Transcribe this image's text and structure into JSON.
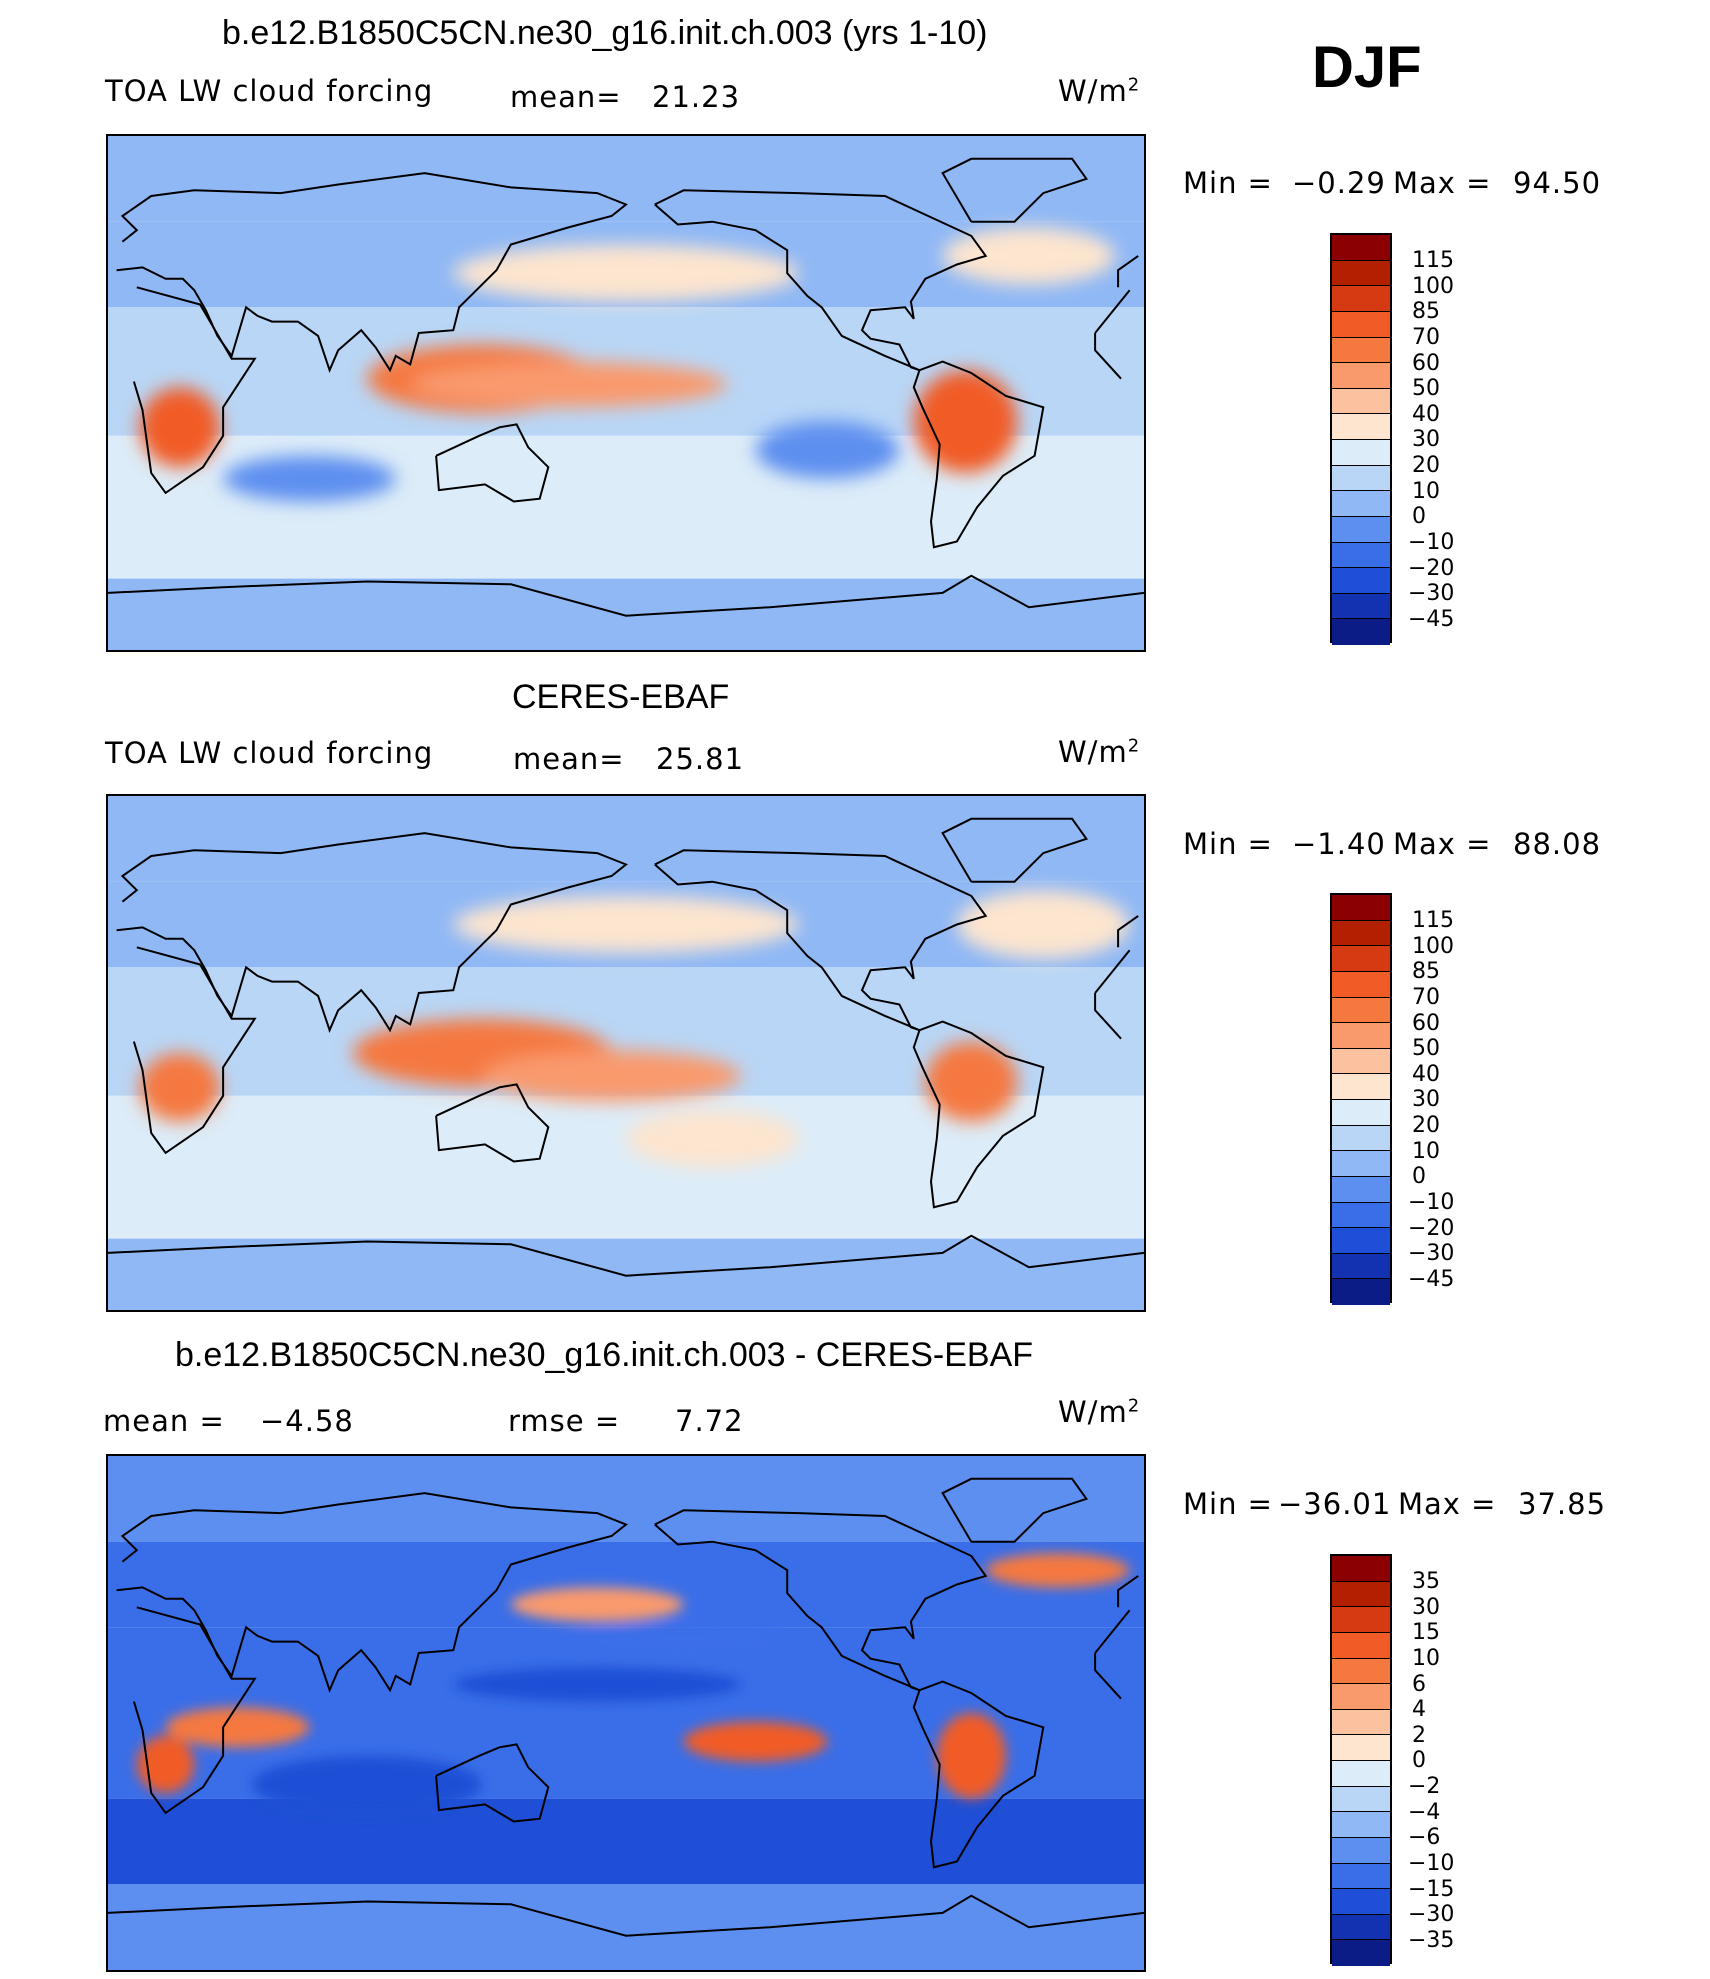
{
  "season": "DJF",
  "palette_main": [
    "#8b0000",
    "#b22000",
    "#d63a12",
    "#f15b26",
    "#f5783f",
    "#f99a6d",
    "#fbc2a0",
    "#fde5cf",
    "#dcecf8",
    "#b9d6f6",
    "#8fb8f5",
    "#5d8ff0",
    "#3a6ee8",
    "#1f4fd6",
    "#1232b2",
    "#0c1c87",
    "#06106a"
  ],
  "chart_data": [
    {
      "type": "heatmap",
      "title": "b.e12.B1850C5CN.ne30_g16.init.ch.003 (yrs 1-10)",
      "variable": "TOA LW cloud forcing",
      "mean_text": "mean=",
      "mean_value": "21.23",
      "units": "W/m",
      "units_sup": "2",
      "min_label": "Min  =",
      "min_value": "−0.29",
      "max_label": "Max  =",
      "max_value": "94.50",
      "levels": [
        "115",
        "100",
        "85",
        "70",
        "60",
        "50",
        "40",
        "30",
        "20",
        "10",
        "0",
        "−10",
        "−20",
        "−30",
        "−45"
      ],
      "blobs": [
        {
          "lon": 130,
          "lat": 5,
          "rx": 40,
          "ry": 12,
          "c": 4
        },
        {
          "lon": 160,
          "lat": 3,
          "rx": 55,
          "ry": 8,
          "c": 5
        },
        {
          "lon": 25,
          "lat": -12,
          "rx": 14,
          "ry": 14,
          "c": 3
        },
        {
          "lon": 298,
          "lat": -10,
          "rx": 18,
          "ry": 18,
          "c": 3
        },
        {
          "lon": 180,
          "lat": 42,
          "rx": 60,
          "ry": 10,
          "c": 7
        },
        {
          "lon": 320,
          "lat": 48,
          "rx": 30,
          "ry": 10,
          "c": 7
        },
        {
          "lon": 70,
          "lat": -30,
          "rx": 30,
          "ry": 8,
          "c": 11
        },
        {
          "lon": 250,
          "lat": -20,
          "rx": 25,
          "ry": 10,
          "c": 11
        }
      ]
    },
    {
      "type": "heatmap",
      "title": "CERES-EBAF",
      "variable": "TOA LW cloud forcing",
      "mean_text": "mean=",
      "mean_value": "25.81",
      "units": "W/m",
      "units_sup": "2",
      "min_label": "Min  =",
      "min_value": "−1.40",
      "max_label": "Max  =",
      "max_value": "88.08",
      "levels": [
        "115",
        "100",
        "85",
        "70",
        "60",
        "50",
        "40",
        "30",
        "20",
        "10",
        "0",
        "−10",
        "−20",
        "−30",
        "−45"
      ],
      "blobs": [
        {
          "lon": 130,
          "lat": 0,
          "rx": 45,
          "ry": 12,
          "c": 4
        },
        {
          "lon": 175,
          "lat": -8,
          "rx": 45,
          "ry": 9,
          "c": 5
        },
        {
          "lon": 25,
          "lat": -12,
          "rx": 14,
          "ry": 12,
          "c": 4
        },
        {
          "lon": 300,
          "lat": -10,
          "rx": 16,
          "ry": 14,
          "c": 4
        },
        {
          "lon": 180,
          "lat": 45,
          "rx": 60,
          "ry": 10,
          "c": 7
        },
        {
          "lon": 325,
          "lat": 45,
          "rx": 30,
          "ry": 12,
          "c": 7
        },
        {
          "lon": 210,
          "lat": -30,
          "rx": 30,
          "ry": 10,
          "c": 7
        }
      ]
    },
    {
      "type": "heatmap",
      "title": "b.e12.B1850C5CN.ne30_g16.init.ch.003 - CERES-EBAF",
      "mean_text": "mean  =",
      "mean_value": "−4.58",
      "rmse_text": "rmse  =",
      "rmse_value": "7.72",
      "units": "W/m",
      "units_sup": "2",
      "min_label": "Min  =",
      "min_value": "−36.01",
      "max_label": "Max  =",
      "max_value": "37.85",
      "levels": [
        "35",
        "30",
        "15",
        "10",
        "6",
        "4",
        "2",
        "0",
        "−2",
        "−4",
        "−6",
        "−10",
        "−15",
        "−30",
        "−35"
      ],
      "blobs": [
        {
          "lon": 225,
          "lat": -10,
          "rx": 25,
          "ry": 7,
          "c": 3
        },
        {
          "lon": 300,
          "lat": -15,
          "rx": 12,
          "ry": 15,
          "c": 3
        },
        {
          "lon": 45,
          "lat": -5,
          "rx": 25,
          "ry": 7,
          "c": 4
        },
        {
          "lon": 20,
          "lat": -18,
          "rx": 10,
          "ry": 10,
          "c": 3
        },
        {
          "lon": 170,
          "lat": 38,
          "rx": 30,
          "ry": 6,
          "c": 5
        },
        {
          "lon": 330,
          "lat": 50,
          "rx": 25,
          "ry": 6,
          "c": 4
        },
        {
          "lon": 90,
          "lat": -25,
          "rx": 40,
          "ry": 10,
          "c": 13
        },
        {
          "lon": 170,
          "lat": 10,
          "rx": 50,
          "ry": 6,
          "c": 13
        },
        {
          "lon": 200,
          "lat": 25,
          "rx": 40,
          "ry": 6,
          "c": 12
        }
      ]
    }
  ]
}
